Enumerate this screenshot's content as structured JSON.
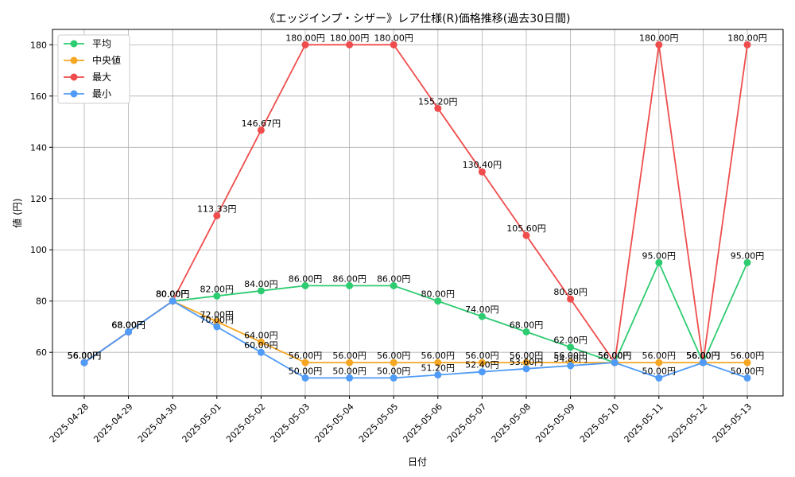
{
  "chart_data": {
    "type": "line",
    "title": "《エッジインプ・シザー》レア仕様(R)価格推移(過去30日間)",
    "xlabel": "日付",
    "ylabel": "値 (円)",
    "ylim": [
      43,
      186
    ],
    "yticks": [
      60,
      80,
      100,
      120,
      140,
      160,
      180
    ],
    "grid": true,
    "legend_position": "top-left",
    "label_suffix": "円",
    "categories": [
      "2025-04-28",
      "2025-04-29",
      "2025-04-30",
      "2025-05-01",
      "2025-05-02",
      "2025-05-03",
      "2025-05-04",
      "2025-05-05",
      "2025-05-06",
      "2025-05-07",
      "2025-05-08",
      "2025-05-09",
      "2025-05-10",
      "2025-05-11",
      "2025-05-12",
      "2025-05-13"
    ],
    "series": [
      {
        "name": "平均",
        "color": "#2ecc71",
        "values": [
          56.0,
          68.0,
          80.0,
          82.0,
          84.0,
          86.0,
          86.0,
          86.0,
          80.0,
          74.0,
          68.0,
          62.0,
          56.0,
          95.0,
          56.0,
          95.0
        ]
      },
      {
        "name": "中央値",
        "color": "#f5a623",
        "values": [
          56.0,
          68.0,
          80.0,
          72.0,
          64.0,
          56.0,
          56.0,
          56.0,
          56.0,
          56.0,
          56.0,
          56.0,
          56.0,
          56.0,
          56.0,
          56.0
        ]
      },
      {
        "name": "最大",
        "color": "#ef4d4d",
        "values": [
          56.0,
          68.0,
          80.0,
          113.33,
          146.67,
          180.0,
          180.0,
          180.0,
          155.2,
          130.4,
          105.6,
          80.8,
          56.0,
          180.0,
          56.0,
          180.0
        ]
      },
      {
        "name": "最小",
        "color": "#4f9bf7",
        "values": [
          56.0,
          68.0,
          80.0,
          70.0,
          60.0,
          50.0,
          50.0,
          50.0,
          51.2,
          52.4,
          53.6,
          54.8,
          56.0,
          50.0,
          56.0,
          50.0
        ]
      }
    ]
  }
}
